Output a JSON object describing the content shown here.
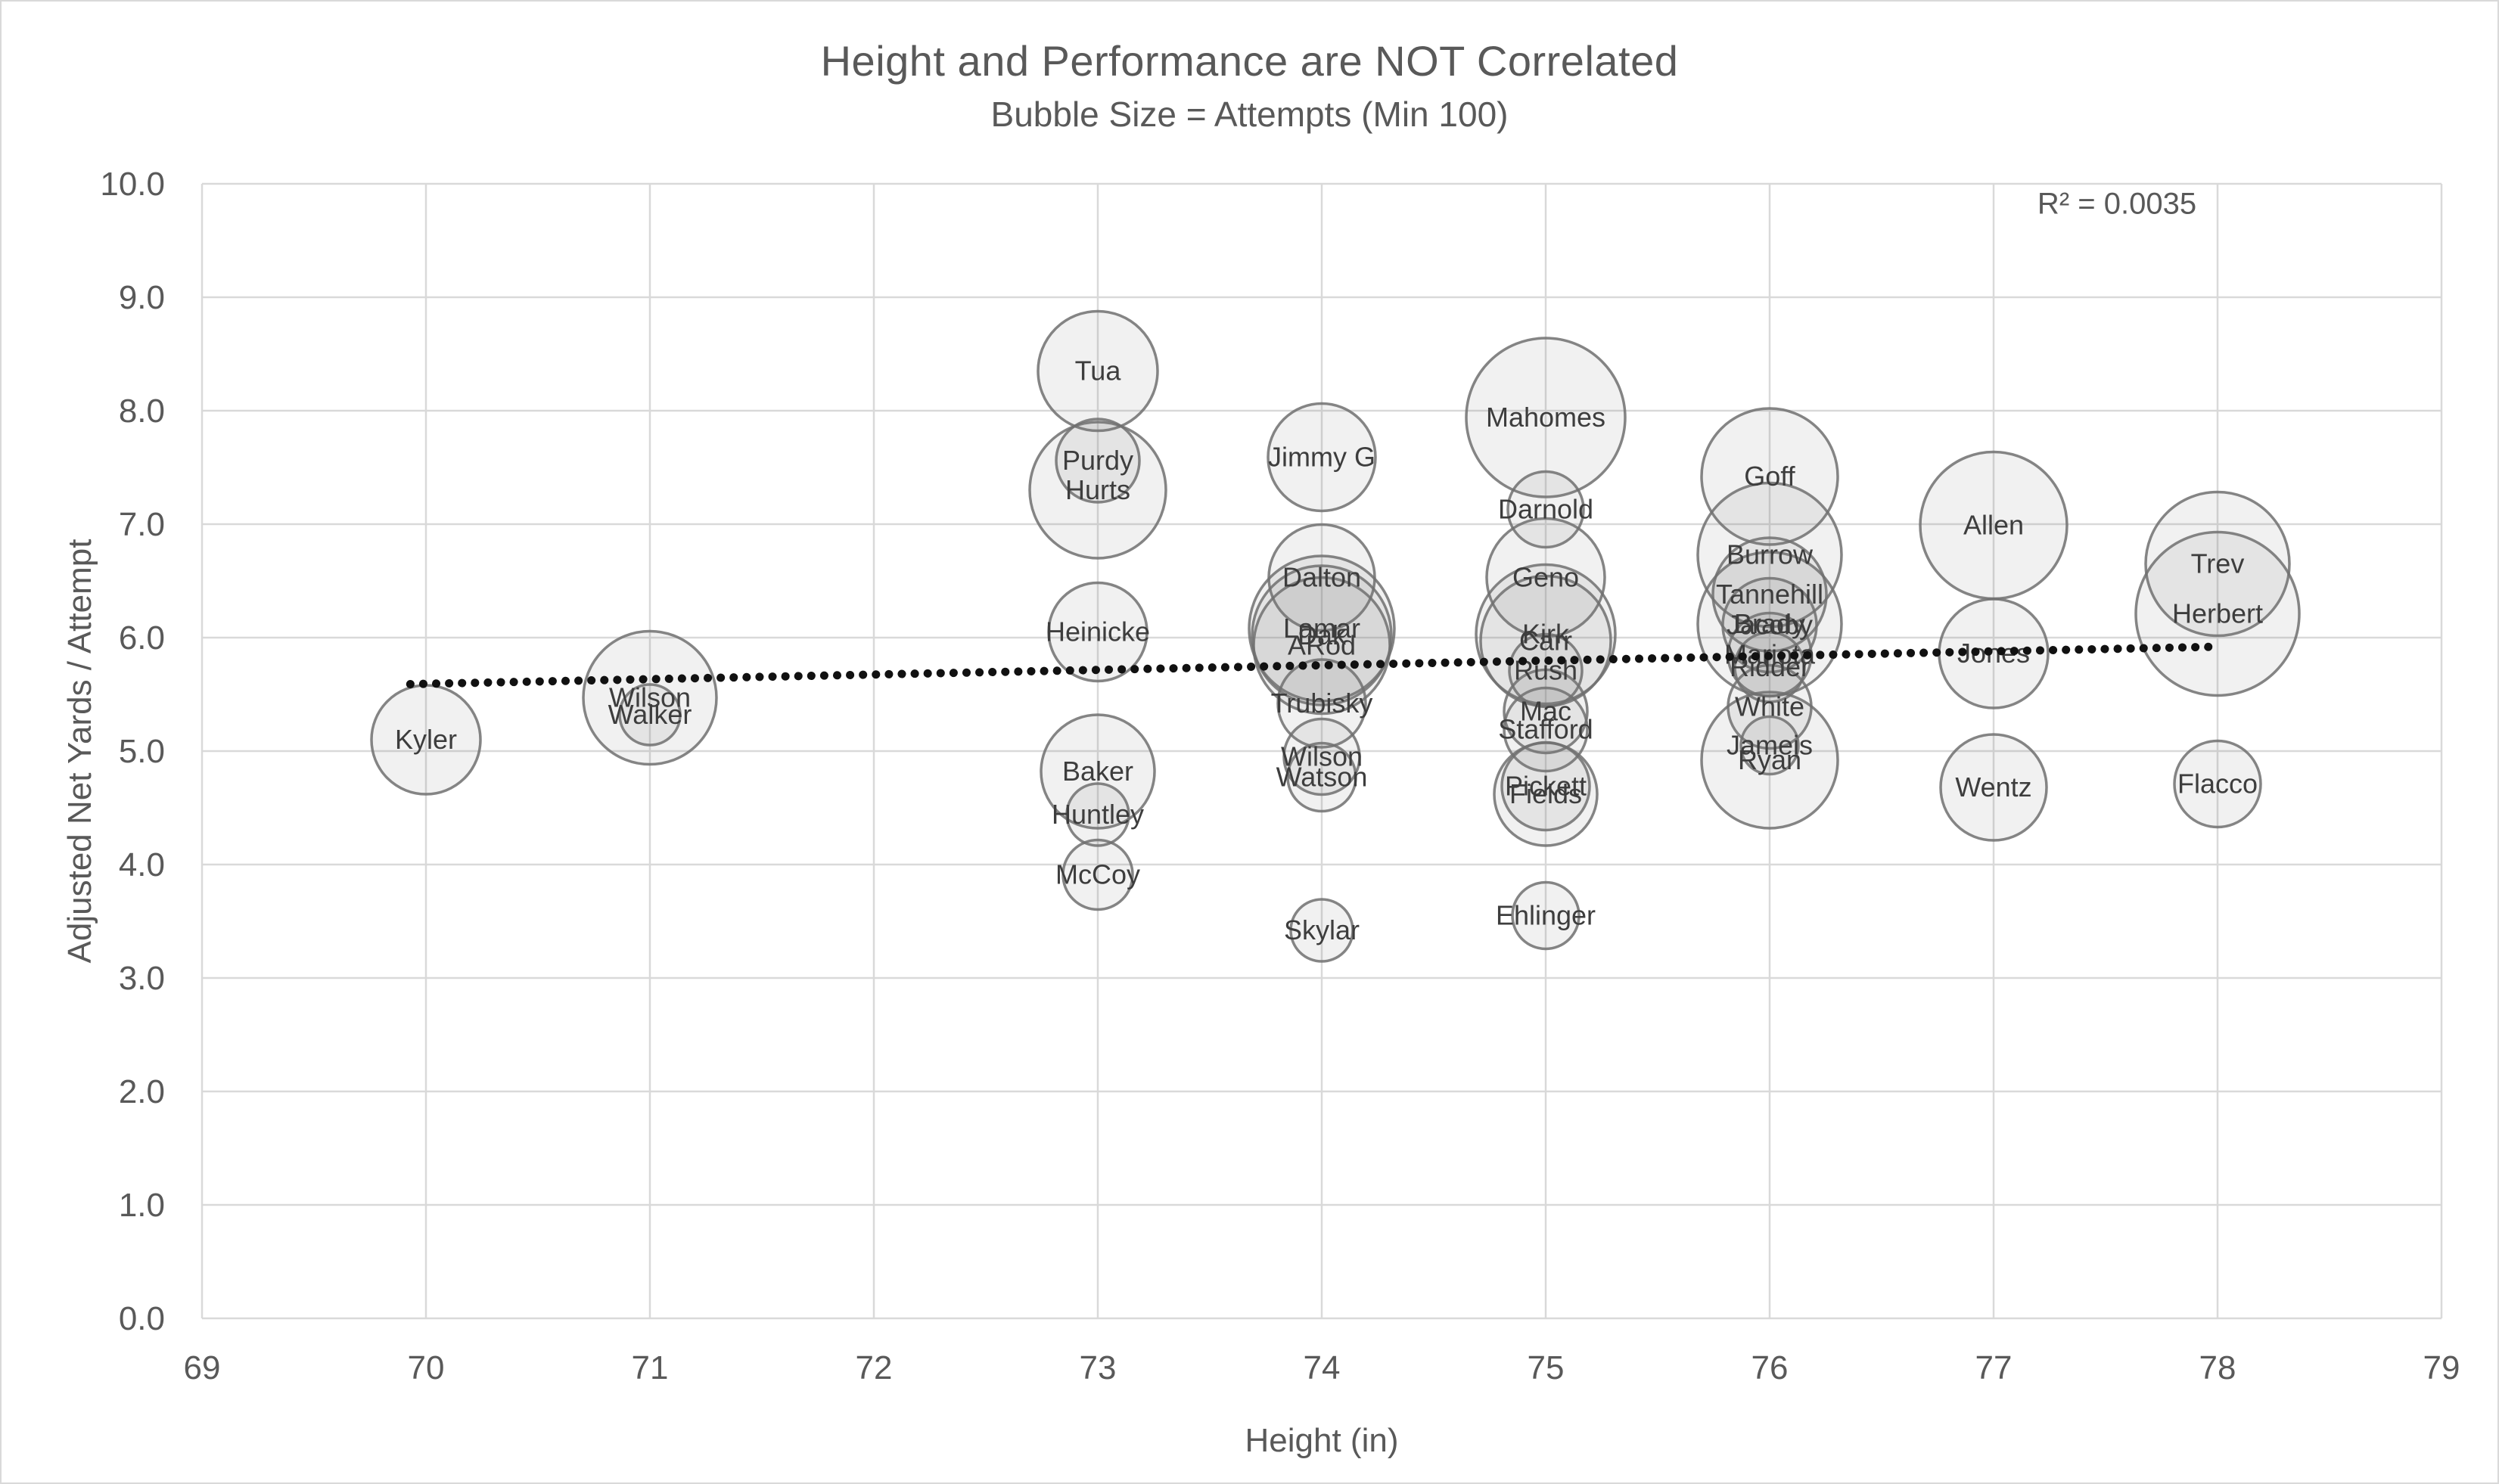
{
  "chart_data": {
    "type": "scatter",
    "title": "Height and Performance are NOT Correlated",
    "subtitle": "Bubble Size = Attempts (Min 100)",
    "xlabel": "Height (in)",
    "ylabel": "Adjusted Net Yards / Attempt",
    "r_squared_label": "R² = 0.0035",
    "x_axis": {
      "min": 69,
      "max": 79,
      "tick_step": 1
    },
    "y_axis": {
      "min": 0,
      "max": 10,
      "tick_step": 1,
      "decimals": 1
    },
    "grid": true,
    "legend": "none",
    "points": [
      {
        "label": "Kyler",
        "x": 70,
        "y": 5.1,
        "r": 72
      },
      {
        "label": "Wilson",
        "x": 71,
        "y": 5.47,
        "r": 88
      },
      {
        "label": "Walker",
        "x": 71,
        "y": 5.32,
        "r": 40
      },
      {
        "label": "Tua",
        "x": 73,
        "y": 8.35,
        "r": 79
      },
      {
        "label": "Purdy",
        "x": 73,
        "y": 7.56,
        "r": 55
      },
      {
        "label": "Hurts",
        "x": 73,
        "y": 7.3,
        "r": 90
      },
      {
        "label": "Heinicke",
        "x": 73,
        "y": 6.05,
        "r": 65
      },
      {
        "label": "Baker",
        "x": 73,
        "y": 4.82,
        "r": 75
      },
      {
        "label": "Huntley",
        "x": 73,
        "y": 4.44,
        "r": 41
      },
      {
        "label": "McCoy",
        "x": 73,
        "y": 3.91,
        "r": 46
      },
      {
        "label": "Jimmy G",
        "x": 74,
        "y": 7.59,
        "r": 71
      },
      {
        "label": "Dalton",
        "x": 74,
        "y": 6.53,
        "r": 70
      },
      {
        "label": "Lamar",
        "x": 74,
        "y": 6.08,
        "r": 96
      },
      {
        "label": "Dak",
        "x": 74,
        "y": 6.02,
        "r": 92
      },
      {
        "label": "ARod",
        "x": 74,
        "y": 5.93,
        "r": 90
      },
      {
        "label": "Trubisky",
        "x": 74,
        "y": 5.42,
        "r": 58
      },
      {
        "label": "Wilson",
        "x": 74,
        "y": 4.95,
        "r": 50
      },
      {
        "label": "Watson",
        "x": 74,
        "y": 4.77,
        "r": 45
      },
      {
        "label": "Skylar",
        "x": 74,
        "y": 3.42,
        "r": 41
      },
      {
        "label": "Mahomes",
        "x": 75,
        "y": 7.94,
        "r": 105
      },
      {
        "label": "Darnold",
        "x": 75,
        "y": 7.13,
        "r": 50
      },
      {
        "label": "Geno",
        "x": 75,
        "y": 6.53,
        "r": 78
      },
      {
        "label": "Kirk",
        "x": 75,
        "y": 6.03,
        "r": 92
      },
      {
        "label": "Carr",
        "x": 75,
        "y": 5.97,
        "r": 86
      },
      {
        "label": "Rush",
        "x": 75,
        "y": 5.71,
        "r": 48
      },
      {
        "label": "Mac",
        "x": 75,
        "y": 5.35,
        "r": 55
      },
      {
        "label": "Stafford",
        "x": 75,
        "y": 5.19,
        "r": 55
      },
      {
        "label": "Pickett",
        "x": 75,
        "y": 4.69,
        "r": 58
      },
      {
        "label": "Fields",
        "x": 75,
        "y": 4.62,
        "r": 68
      },
      {
        "label": "Ehlinger",
        "x": 75,
        "y": 3.55,
        "r": 44
      },
      {
        "label": "Goff",
        "x": 76,
        "y": 7.42,
        "r": 90
      },
      {
        "label": "Burrow",
        "x": 76,
        "y": 6.73,
        "r": 95
      },
      {
        "label": "Tannehill",
        "x": 76,
        "y": 6.38,
        "r": 75
      },
      {
        "label": "Brady",
        "x": 76,
        "y": 6.12,
        "r": 95
      },
      {
        "label": "Jacoby",
        "x": 76,
        "y": 6.11,
        "r": 62
      },
      {
        "label": "Mariota",
        "x": 76,
        "y": 5.85,
        "r": 55
      },
      {
        "label": "Ridder",
        "x": 76,
        "y": 5.74,
        "r": 46
      },
      {
        "label": "White",
        "x": 76,
        "y": 5.39,
        "r": 55
      },
      {
        "label": "Jameis",
        "x": 76,
        "y": 5.05,
        "r": 38
      },
      {
        "label": "Ryan",
        "x": 76,
        "y": 4.92,
        "r": 90
      },
      {
        "label": "Allen",
        "x": 77,
        "y": 6.99,
        "r": 97
      },
      {
        "label": "Jones",
        "x": 77,
        "y": 5.86,
        "r": 72
      },
      {
        "label": "Wentz",
        "x": 77,
        "y": 4.68,
        "r": 70
      },
      {
        "label": "Trev",
        "x": 78,
        "y": 6.65,
        "r": 95
      },
      {
        "label": "Herbert",
        "x": 78,
        "y": 6.21,
        "r": 108
      },
      {
        "label": "Flacco",
        "x": 78,
        "y": 4.71,
        "r": 57
      }
    ],
    "trendline": {
      "style": "dotted",
      "x1": 69.93,
      "y1": 5.59,
      "x2": 78.0,
      "y2": 5.92
    },
    "colors": {
      "background": "#ffffff",
      "grid": "#d9d9d9",
      "axis_text": "#595959",
      "label_text": "#3d3d3d",
      "bubble_stroke": "#707070",
      "bubble_fill": "rgba(120,120,120,0.10)",
      "trendline": "#111111"
    }
  }
}
